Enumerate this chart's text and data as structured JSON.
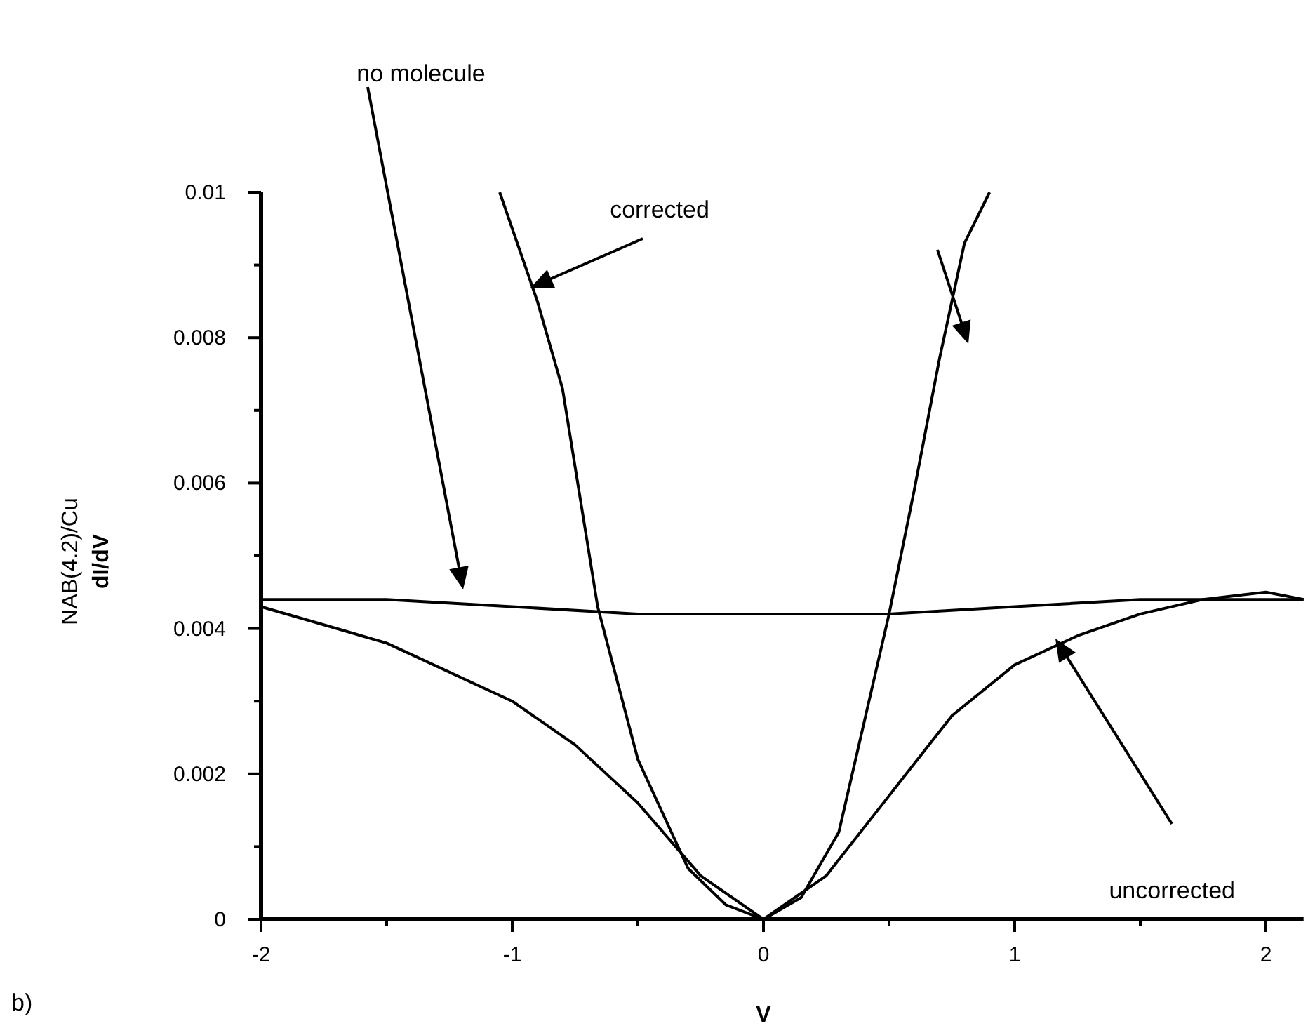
{
  "chart_data": {
    "type": "line",
    "xlabel": "V",
    "ylabel": "NAB(4.2)/Cu\ndI/dV",
    "xlim": [
      -2,
      2.15
    ],
    "ylim": [
      0,
      0.01
    ],
    "xticks": [
      -2,
      {
        "value": -1.5,
        "label": null
      },
      -1,
      {
        "value": -0.5,
        "label": null
      },
      0,
      {
        "value": 0.5,
        "label": null
      },
      1,
      {
        "value": 1.5,
        "label": null
      },
      2
    ],
    "yticks": [
      0,
      {
        "value": 0.001,
        "label": null
      },
      0.002,
      {
        "value": 0.003,
        "label": null
      },
      0.004,
      {
        "value": 0.005,
        "label": null
      },
      0.006,
      {
        "value": 0.007,
        "label": null
      },
      0.008,
      {
        "value": 0.009,
        "label": null
      },
      0.01
    ],
    "grid": false,
    "line_style": "solid",
    "series": [
      {
        "color": "#000000",
        "x": [
          -2,
          -1.5,
          -1,
          -0.5,
          0,
          0.5,
          1,
          1.5,
          2,
          2.15
        ],
        "values": [
          0.0044,
          0.0044,
          0.0043,
          0.0042,
          0.0042,
          0.0042,
          0.0043,
          0.0044,
          0.0044,
          0.0044
        ]
      },
      {
        "color": "#000000",
        "x": [
          -2,
          -1.5,
          -1,
          -0.75,
          -0.5,
          -0.25,
          0,
          0.25,
          0.5,
          0.75,
          1,
          1.25,
          1.5,
          1.75,
          2,
          2.15
        ],
        "values": [
          0.0043,
          0.0038,
          0.003,
          0.0024,
          0.0016,
          0.0006,
          0,
          0.0006,
          0.0017,
          0.0028,
          0.0035,
          0.0039,
          0.0042,
          0.0044,
          0.0045,
          0.0044
        ]
      },
      {
        "color": "#000000",
        "x": [
          -1.05,
          -0.9,
          -0.8,
          -0.66,
          -0.5,
          -0.3,
          -0.15,
          0,
          0.15,
          0.3,
          0.5,
          0.6,
          0.7,
          0.8,
          0.9
        ],
        "values": [
          0.01,
          0.0085,
          0.0073,
          0.0043,
          0.0022,
          0.0007,
          0.0002,
          0,
          0.0003,
          0.0012,
          0.0042,
          0.0059,
          0.0077,
          0.0093,
          0.01
        ]
      }
    ],
    "annotations": [
      "no molecule",
      "corrected",
      "uncorrected",
      "b)"
    ]
  }
}
